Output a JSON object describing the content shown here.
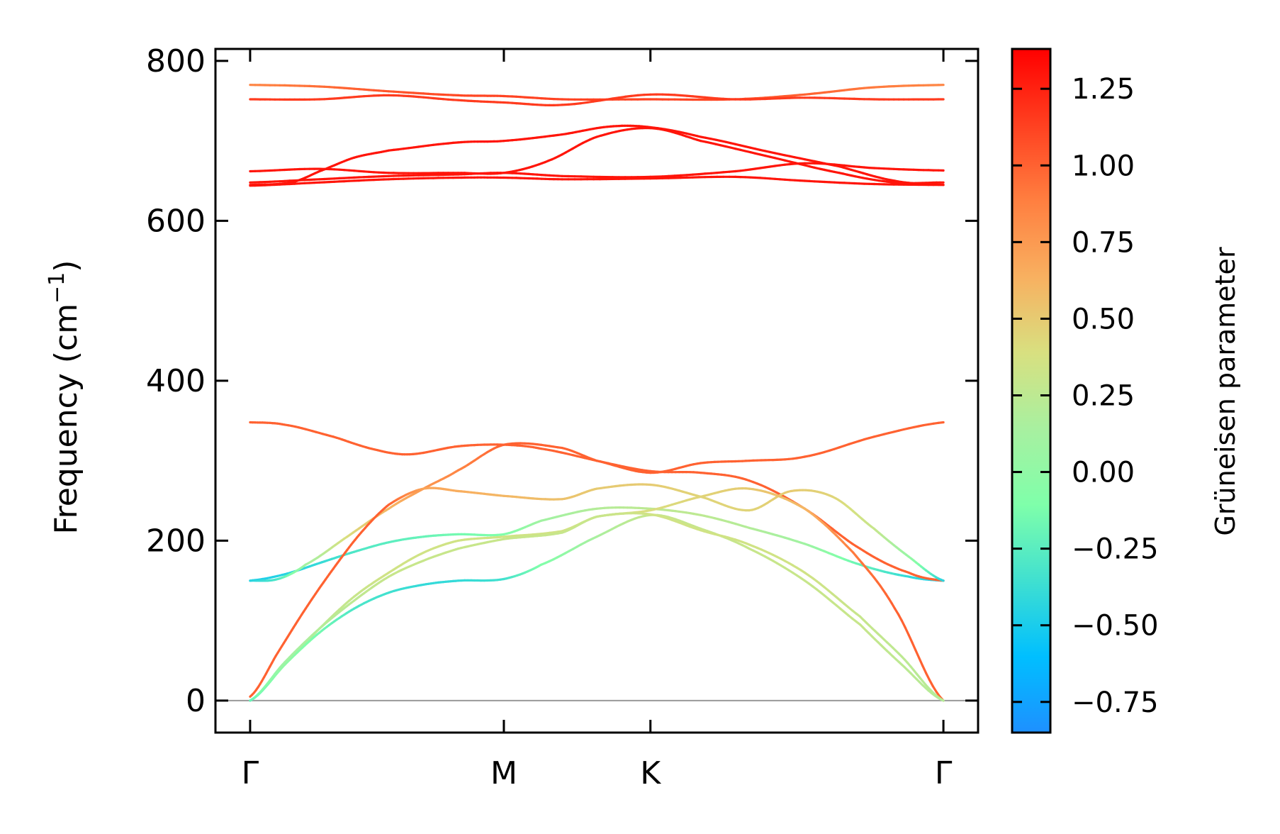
{
  "chart_data": {
    "type": "line",
    "ylabel": "Frequency (cm",
    "ylabel_sup": "−1",
    "ylabel_close": ")",
    "ylim": [
      -40,
      815
    ],
    "yticks": [
      0,
      200,
      400,
      600,
      800
    ],
    "ytick_labels": [
      "0",
      "200",
      "400",
      "600",
      "800"
    ],
    "x_ticks": [
      {
        "label": "Γ",
        "x": 0.0
      },
      {
        "label": "M",
        "x": 0.366
      },
      {
        "label": "K",
        "x": 0.5774
      },
      {
        "label": "Γ",
        "x": 1.0
      }
    ],
    "xlim": [
      -0.05,
      1.05
    ],
    "grid": false,
    "zero_line": 0,
    "colorbar": {
      "title": "Grüneisen parameter",
      "range": [
        -0.85,
        1.38
      ],
      "ticks": [
        1.25,
        1.0,
        0.75,
        0.5,
        0.25,
        0.0,
        -0.25,
        -0.5,
        -0.75
      ],
      "tick_labels": [
        "1.25",
        "1.00",
        "0.75",
        "0.50",
        "0.25",
        "0.00",
        "−0.25",
        "−0.50",
        "−0.75"
      ],
      "colormap": [
        "#1e90ff",
        "#00bfff",
        "#40e0d0",
        "#7fffaa",
        "#a8f0a0",
        "#d8e080",
        "#f8b060",
        "#ff7f40",
        "#ff4020",
        "#ff0000"
      ]
    },
    "series": [
      {
        "points": [
          [
            0.0,
            770
          ],
          [
            0.1,
            768
          ],
          [
            0.2,
            762
          ],
          [
            0.3,
            757
          ],
          [
            0.366,
            756
          ],
          [
            0.45,
            752
          ],
          [
            0.5774,
            752
          ],
          [
            0.7,
            752
          ],
          [
            0.8,
            758
          ],
          [
            0.9,
            767
          ],
          [
            1.0,
            770
          ]
        ],
        "g": [
          0.85,
          0.95,
          1.05,
          1.1,
          1.12,
          1.12,
          1.12,
          1.1,
          1.0,
          0.9,
          0.85
        ]
      },
      {
        "points": [
          [
            0.0,
            752
          ],
          [
            0.1,
            752
          ],
          [
            0.2,
            757
          ],
          [
            0.3,
            751
          ],
          [
            0.366,
            748
          ],
          [
            0.45,
            745
          ],
          [
            0.5774,
            758
          ],
          [
            0.7,
            752
          ],
          [
            0.8,
            754
          ],
          [
            0.9,
            752
          ],
          [
            1.0,
            752
          ]
        ],
        "g": [
          1.15,
          1.15,
          1.15,
          1.15,
          1.15,
          1.15,
          1.15,
          1.15,
          1.15,
          1.15,
          1.15
        ]
      },
      {
        "points": [
          [
            0.0,
            645
          ],
          [
            0.06,
            648
          ],
          [
            0.1,
            662
          ],
          [
            0.15,
            679
          ],
          [
            0.2,
            688
          ],
          [
            0.3,
            698
          ],
          [
            0.366,
            700
          ],
          [
            0.45,
            708
          ],
          [
            0.52,
            718
          ],
          [
            0.5774,
            717
          ],
          [
            0.65,
            705
          ],
          [
            0.75,
            686
          ],
          [
            0.85,
            668
          ],
          [
            0.93,
            650
          ],
          [
            1.0,
            645
          ]
        ],
        "g": [
          1.3,
          1.3,
          1.3,
          1.3,
          1.3,
          1.3,
          1.3,
          1.3,
          1.3,
          1.3,
          1.3,
          1.3,
          1.3,
          1.3,
          1.3
        ]
      },
      {
        "points": [
          [
            0.0,
            662
          ],
          [
            0.1,
            665
          ],
          [
            0.2,
            660
          ],
          [
            0.3,
            660
          ],
          [
            0.366,
            660
          ],
          [
            0.43,
            675
          ],
          [
            0.5,
            705
          ],
          [
            0.5774,
            716
          ],
          [
            0.65,
            700
          ],
          [
            0.75,
            680
          ],
          [
            0.85,
            660
          ],
          [
            0.93,
            648
          ],
          [
            1.0,
            648
          ]
        ],
        "g": [
          1.3,
          1.3,
          1.3,
          1.3,
          1.3,
          1.3,
          1.3,
          1.3,
          1.3,
          1.3,
          1.3,
          1.3,
          1.3
        ]
      },
      {
        "points": [
          [
            0.0,
            648
          ],
          [
            0.1,
            652
          ],
          [
            0.2,
            656
          ],
          [
            0.3,
            658
          ],
          [
            0.366,
            660
          ],
          [
            0.45,
            656
          ],
          [
            0.5774,
            655
          ],
          [
            0.7,
            662
          ],
          [
            0.8,
            672
          ],
          [
            0.9,
            666
          ],
          [
            1.0,
            663
          ]
        ],
        "g": [
          1.3,
          1.3,
          1.3,
          1.3,
          1.3,
          1.3,
          1.3,
          1.3,
          1.3,
          1.3,
          1.3
        ]
      },
      {
        "points": [
          [
            0.0,
            644
          ],
          [
            0.1,
            648
          ],
          [
            0.2,
            652
          ],
          [
            0.3,
            654
          ],
          [
            0.366,
            654
          ],
          [
            0.45,
            652
          ],
          [
            0.5774,
            653
          ],
          [
            0.7,
            655
          ],
          [
            0.8,
            650
          ],
          [
            0.9,
            646
          ],
          [
            1.0,
            645
          ]
        ],
        "g": [
          1.3,
          1.3,
          1.3,
          1.3,
          1.3,
          1.3,
          1.3,
          1.3,
          1.3,
          1.3,
          1.3
        ]
      },
      {
        "points": [
          [
            0.0,
            348
          ],
          [
            0.05,
            345
          ],
          [
            0.12,
            330
          ],
          [
            0.18,
            314
          ],
          [
            0.23,
            308
          ],
          [
            0.3,
            318
          ],
          [
            0.366,
            320
          ],
          [
            0.42,
            315
          ],
          [
            0.5,
            300
          ],
          [
            0.5774,
            285
          ],
          [
            0.65,
            297
          ],
          [
            0.72,
            300
          ],
          [
            0.8,
            305
          ],
          [
            0.9,
            330
          ],
          [
            1.0,
            348
          ]
        ],
        "g": [
          1.0,
          1.0,
          1.0,
          1.0,
          1.0,
          1.0,
          1.0,
          1.0,
          1.0,
          1.0,
          1.0,
          1.0,
          1.0,
          1.0,
          1.0
        ]
      },
      {
        "points": [
          [
            0.0,
            150
          ],
          [
            0.05,
            158
          ],
          [
            0.1,
            172
          ],
          [
            0.15,
            186
          ],
          [
            0.2,
            198
          ],
          [
            0.25,
            205
          ],
          [
            0.3,
            208
          ],
          [
            0.366,
            208
          ],
          [
            0.42,
            225
          ],
          [
            0.5,
            240
          ],
          [
            0.5774,
            240
          ],
          [
            0.65,
            232
          ],
          [
            0.72,
            216
          ],
          [
            0.8,
            196
          ],
          [
            0.88,
            170
          ],
          [
            0.95,
            155
          ],
          [
            1.0,
            150
          ]
        ],
        "g": [
          -0.5,
          -0.45,
          -0.4,
          -0.3,
          -0.25,
          -0.2,
          -0.15,
          -0.1,
          0.1,
          0.2,
          0.25,
          0.25,
          0.2,
          0.1,
          -0.2,
          -0.4,
          -0.5
        ]
      },
      {
        "points": [
          [
            0.0,
            150
          ],
          [
            0.04,
            152
          ],
          [
            0.08,
            170
          ],
          [
            0.14,
            205
          ],
          [
            0.2,
            240
          ],
          [
            0.25,
            265
          ],
          [
            0.3,
            288
          ],
          [
            0.366,
            320
          ],
          [
            0.45,
            316
          ],
          [
            0.5,
            300
          ],
          [
            0.5774,
            287
          ],
          [
            0.65,
            285
          ],
          [
            0.72,
            275
          ],
          [
            0.8,
            240
          ],
          [
            0.88,
            190
          ],
          [
            0.95,
            160
          ],
          [
            1.0,
            150
          ]
        ],
        "g": [
          -0.45,
          -0.3,
          0.1,
          0.4,
          0.6,
          0.75,
          0.85,
          1.0,
          1.0,
          1.0,
          1.0,
          1.0,
          1.0,
          1.0,
          1.0,
          1.0,
          1.0
        ]
      },
      {
        "points": [
          [
            0.0,
            5
          ],
          [
            0.04,
            60
          ],
          [
            0.08,
            115
          ],
          [
            0.12,
            165
          ],
          [
            0.16,
            210
          ],
          [
            0.2,
            245
          ],
          [
            0.25,
            265
          ],
          [
            0.3,
            262
          ],
          [
            0.366,
            256
          ],
          [
            0.45,
            252
          ],
          [
            0.5,
            265
          ],
          [
            0.5774,
            270
          ],
          [
            0.65,
            255
          ],
          [
            0.72,
            238
          ],
          [
            0.78,
            262
          ],
          [
            0.84,
            255
          ],
          [
            0.9,
            215
          ],
          [
            0.95,
            180
          ],
          [
            1.0,
            150
          ]
        ],
        "g": [
          1.0,
          1.0,
          1.0,
          1.0,
          1.0,
          1.0,
          0.7,
          0.65,
          0.6,
          0.55,
          0.5,
          0.5,
          0.45,
          0.45,
          0.5,
          0.45,
          0.3,
          0.05,
          -0.45
        ]
      },
      {
        "points": [
          [
            0.0,
            0
          ],
          [
            0.05,
            45
          ],
          [
            0.1,
            90
          ],
          [
            0.15,
            130
          ],
          [
            0.2,
            160
          ],
          [
            0.25,
            185
          ],
          [
            0.3,
            200
          ],
          [
            0.366,
            205
          ],
          [
            0.45,
            212
          ],
          [
            0.5,
            230
          ],
          [
            0.5774,
            238
          ],
          [
            0.65,
            255
          ],
          [
            0.72,
            265
          ],
          [
            0.8,
            240
          ],
          [
            0.87,
            185
          ],
          [
            0.93,
            115
          ],
          [
            1.0,
            0
          ]
        ],
        "g": [
          -0.3,
          0.15,
          0.25,
          0.3,
          0.35,
          0.35,
          0.35,
          0.35,
          0.35,
          0.4,
          0.4,
          0.45,
          0.5,
          0.6,
          0.9,
          1.0,
          1.0
        ]
      },
      {
        "points": [
          [
            0.0,
            0
          ],
          [
            0.05,
            45
          ],
          [
            0.1,
            85
          ],
          [
            0.15,
            115
          ],
          [
            0.2,
            135
          ],
          [
            0.25,
            145
          ],
          [
            0.3,
            150
          ],
          [
            0.366,
            152
          ],
          [
            0.42,
            170
          ],
          [
            0.5,
            205
          ],
          [
            0.5774,
            232
          ],
          [
            0.65,
            215
          ],
          [
            0.72,
            190
          ],
          [
            0.8,
            150
          ],
          [
            0.88,
            95
          ],
          [
            0.94,
            45
          ],
          [
            1.0,
            0
          ]
        ],
        "g": [
          -0.3,
          0.0,
          -0.15,
          -0.3,
          -0.35,
          -0.4,
          -0.4,
          -0.35,
          -0.1,
          0.15,
          0.3,
          0.3,
          0.3,
          0.3,
          0.3,
          0.25,
          0.2
        ]
      },
      {
        "points": [
          [
            0.0,
            0
          ],
          [
            0.05,
            48
          ],
          [
            0.1,
            90
          ],
          [
            0.15,
            125
          ],
          [
            0.2,
            155
          ],
          [
            0.25,
            175
          ],
          [
            0.3,
            190
          ],
          [
            0.366,
            202
          ],
          [
            0.45,
            210
          ],
          [
            0.5,
            230
          ],
          [
            0.5774,
            233
          ],
          [
            0.65,
            213
          ],
          [
            0.72,
            195
          ],
          [
            0.8,
            160
          ],
          [
            0.88,
            105
          ],
          [
            0.94,
            55
          ],
          [
            1.0,
            0
          ]
        ],
        "g": [
          -0.2,
          0.1,
          0.2,
          0.25,
          0.3,
          0.3,
          0.3,
          0.3,
          0.3,
          0.3,
          0.35,
          0.35,
          0.35,
          0.35,
          0.3,
          0.25,
          0.2
        ]
      }
    ]
  }
}
